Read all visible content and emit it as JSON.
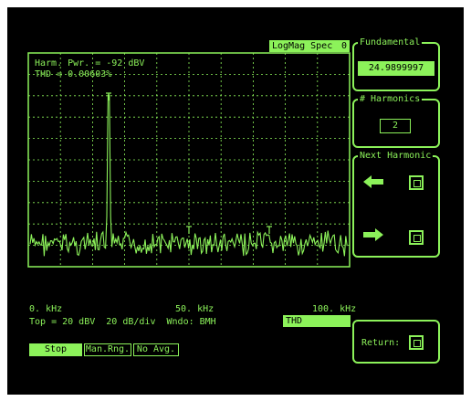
{
  "trace": {
    "mode_label": "LogMag Spec",
    "channel": "0",
    "harm_power": "Harm. Pwr. = -92 dBV",
    "thd": "THD = 0.00603%"
  },
  "axis": {
    "x_start": "0. kHz",
    "x_mid": "50. kHz",
    "x_end": "100. kHz",
    "scale_info": "Top = 20 dBV  20 dB/div  Wndo: BMH",
    "active_measurement": "THD"
  },
  "softkeys": {
    "stop": "Stop",
    "man_rng": "Man.Rng.",
    "no_avg": "No Avg."
  },
  "panels": {
    "fundamental": {
      "title": "Fundamental",
      "value": "24.9899997 kHz"
    },
    "harmonics": {
      "title": "# Harmonics",
      "value": "2"
    },
    "next_harmonic": {
      "title": "Next Harmonic"
    },
    "return_label": "Return:"
  },
  "icons": [
    "arrow-left-icon",
    "arrow-right-icon",
    "softkey-icon"
  ],
  "colors": {
    "phosphor": "#8cf25a",
    "background": "#000000"
  }
}
